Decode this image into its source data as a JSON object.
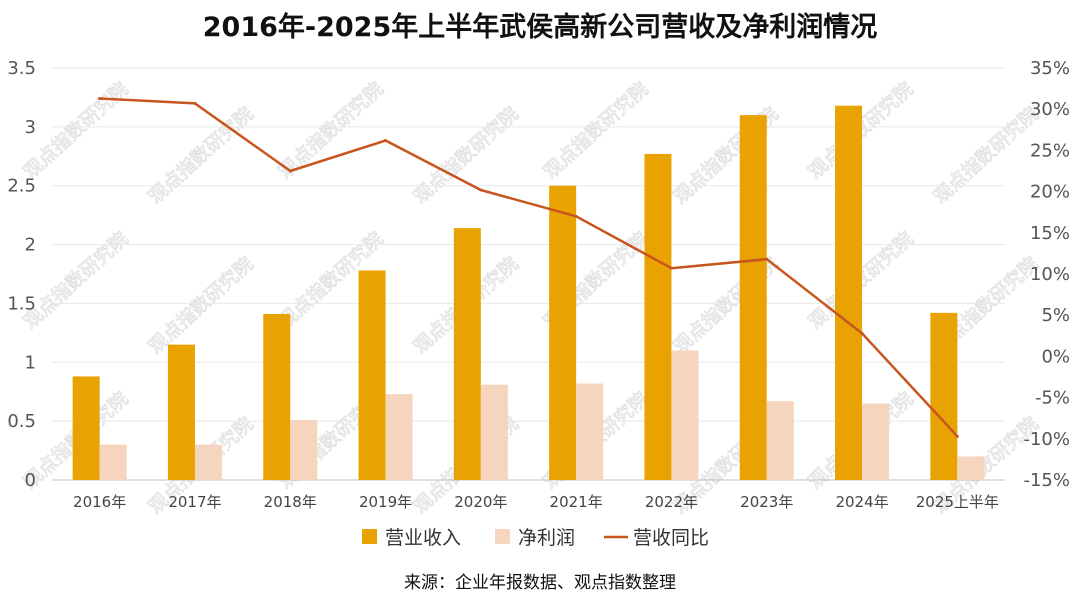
{
  "chart_data": {
    "type": "bar",
    "title": "2016年-2025年上半年武侯高新公司营收及净利润情况",
    "categories": [
      "2016年",
      "2017年",
      "2018年",
      "2019年",
      "2020年",
      "2021年",
      "2022年",
      "2023年",
      "2024年",
      "2025上半年"
    ],
    "series": [
      {
        "name": "营业收入",
        "type": "bar",
        "axis": "left",
        "color": "#E8A202",
        "values": [
          0.88,
          1.15,
          1.41,
          1.78,
          2.14,
          2.5,
          2.77,
          3.1,
          3.18,
          1.42
        ]
      },
      {
        "name": "净利润",
        "type": "bar",
        "axis": "left",
        "color": "#F6D5BE",
        "values": [
          0.3,
          0.3,
          0.51,
          0.73,
          0.81,
          0.82,
          1.1,
          0.67,
          0.65,
          0.2
        ]
      },
      {
        "name": "营收同比",
        "type": "line",
        "axis": "right",
        "color": "#C8541E",
        "values": [
          31.3,
          30.7,
          22.5,
          26.2,
          20.2,
          17.0,
          10.7,
          11.8,
          2.8,
          -9.7
        ]
      }
    ],
    "left_axis": {
      "ylim": [
        0,
        3.5
      ],
      "ticks": [
        0,
        0.5,
        1,
        1.5,
        2,
        2.5,
        3,
        3.5
      ],
      "tick_labels": [
        "0",
        "0.5",
        "1",
        "1.5",
        "2",
        "2.5",
        "3",
        "3.5"
      ]
    },
    "right_axis": {
      "ylim": [
        -15,
        35
      ],
      "ticks": [
        -15,
        -10,
        -5,
        0,
        5,
        10,
        15,
        20,
        25,
        30,
        35
      ],
      "tick_labels": [
        "-15%",
        "-10%",
        "-5%",
        "0%",
        "5%",
        "10%",
        "15%",
        "20%",
        "25%",
        "30%",
        "35%"
      ]
    },
    "grid": true,
    "legend_position": "bottom"
  },
  "source_note": "来源：企业年报数据、观点指数整理",
  "watermark_text": "观点指数研究院"
}
